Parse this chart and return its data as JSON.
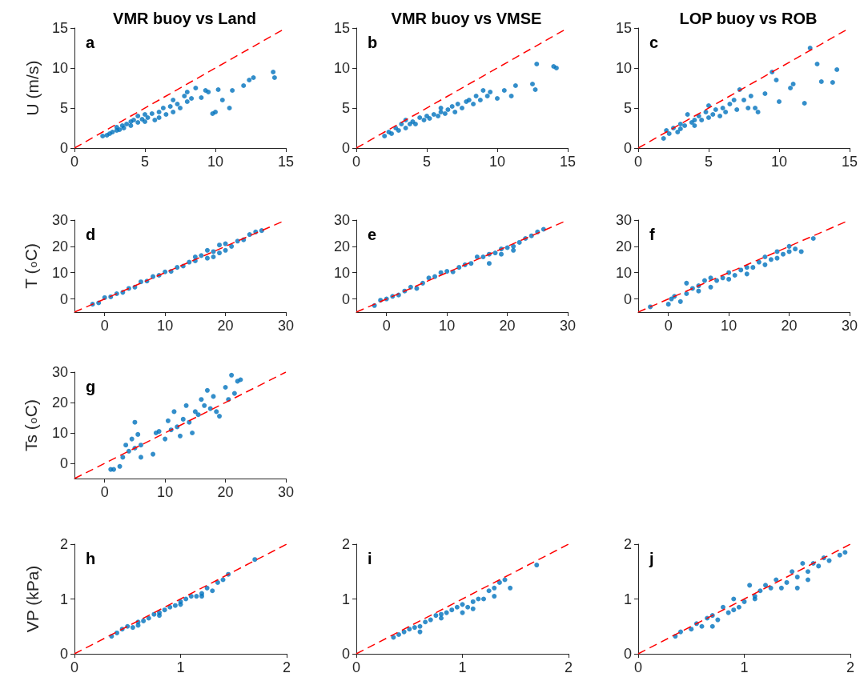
{
  "chart_data": [
    {
      "type": "scatter",
      "title": "VMR buoy vs Land",
      "ylabel": "U (m/s)",
      "annotations": [
        "a"
      ],
      "xlim": [
        0,
        15
      ],
      "xticks": [
        0,
        5,
        10,
        15
      ],
      "ylim": [
        0,
        15
      ],
      "yticks": [
        0,
        5,
        10,
        15
      ],
      "series": [
        {
          "color": "#0072bd",
          "marker": "circle",
          "x": [
            2,
            2.3,
            2.5,
            2.7,
            3,
            3,
            3.2,
            3.4,
            3.5,
            3.7,
            4,
            4,
            4.2,
            4.5,
            4.5,
            4.8,
            5,
            5,
            5.2,
            5.5,
            5.7,
            6,
            6,
            6.3,
            6.5,
            6.8,
            7,
            7,
            7.3,
            7.5,
            7.8,
            8,
            8,
            8.3,
            8.6,
            9,
            9.3,
            9.5,
            9.8,
            10,
            10.2,
            10.5,
            11,
            11.2,
            12,
            12.4,
            12.7,
            14.1,
            14.2
          ],
          "values": [
            1.5,
            1.6,
            1.8,
            2,
            2.2,
            2.6,
            2.3,
            2.8,
            2.5,
            3,
            2.8,
            3.3,
            3.5,
            3.2,
            4,
            3.6,
            3.3,
            4.2,
            3.8,
            4.3,
            3.5,
            4.5,
            3.8,
            5,
            4.2,
            5.2,
            4.5,
            6,
            5.5,
            5,
            6.5,
            5.8,
            7,
            6.2,
            7.5,
            6.3,
            7.2,
            7,
            4.3,
            4.5,
            7.3,
            6,
            5,
            7.2,
            7.8,
            8.5,
            8.8,
            9.5,
            8.8
          ]
        },
        {
          "type": "line",
          "color": "#ff0000",
          "marker": "none",
          "line_style": "dashed",
          "x": [
            0,
            15
          ],
          "values": [
            0,
            15
          ]
        }
      ]
    },
    {
      "type": "scatter",
      "title": "VMR buoy vs VMSE",
      "annotations": [
        "b"
      ],
      "xlim": [
        0,
        15
      ],
      "xticks": [
        0,
        5,
        10,
        15
      ],
      "ylim": [
        0,
        15
      ],
      "yticks": [
        0,
        5,
        10,
        15
      ],
      "series": [
        {
          "color": "#0072bd",
          "marker": "circle",
          "x": [
            2,
            2.3,
            2.5,
            2.8,
            3,
            3.2,
            3.5,
            3.5,
            3.8,
            4,
            4.2,
            4.5,
            4.8,
            5,
            5.2,
            5.5,
            5.8,
            6,
            6,
            6.3,
            6.5,
            6.8,
            7,
            7.2,
            7.5,
            7.8,
            8,
            8.3,
            8.5,
            8.8,
            9,
            9.3,
            9.5,
            10,
            10.5,
            11,
            11.3,
            12.5,
            12.7,
            12.8,
            14,
            14.2
          ],
          "values": [
            1.5,
            2,
            1.8,
            2.5,
            2.2,
            3,
            2.5,
            3.5,
            3,
            3.3,
            3,
            3.8,
            3.5,
            4,
            3.7,
            4.2,
            4,
            4.5,
            5,
            4.3,
            4.8,
            5.2,
            4.5,
            5.5,
            5,
            5.8,
            6,
            5.5,
            6.5,
            6,
            7.2,
            6.5,
            7,
            6.2,
            7.2,
            6.5,
            7.8,
            8,
            7.3,
            10.5,
            10.2,
            10
          ]
        },
        {
          "type": "line",
          "color": "#ff0000",
          "marker": "none",
          "line_style": "dashed",
          "x": [
            0,
            15
          ],
          "values": [
            0,
            15
          ]
        }
      ]
    },
    {
      "type": "scatter",
      "title": "LOP buoy vs ROB",
      "annotations": [
        "c"
      ],
      "xlim": [
        0,
        15
      ],
      "xticks": [
        0,
        5,
        10,
        15
      ],
      "ylim": [
        0,
        15
      ],
      "yticks": [
        0,
        5,
        10,
        15
      ],
      "series": [
        {
          "color": "#0072bd",
          "marker": "circle",
          "x": [
            1.8,
            2,
            2.2,
            2.5,
            2.8,
            3,
            3,
            3.3,
            3.5,
            3.8,
            4,
            4,
            4.3,
            4.5,
            4.8,
            5,
            5,
            5.3,
            5.5,
            5.8,
            6,
            6.2,
            6.5,
            6.8,
            7,
            7.2,
            7.5,
            7.8,
            8,
            8.3,
            8.5,
            9,
            9.5,
            9.8,
            10,
            10.8,
            11,
            11.8,
            12.2,
            12.7,
            13,
            13.8,
            14.1
          ],
          "values": [
            1.2,
            2.2,
            1.8,
            2.5,
            2,
            3,
            2.4,
            2.8,
            4.2,
            3.2,
            3.5,
            2.8,
            4,
            3.5,
            4.5,
            3.8,
            5.3,
            4.2,
            4.8,
            4,
            5,
            4.5,
            5.5,
            6,
            4.8,
            7.3,
            6,
            5,
            6.5,
            5,
            4.5,
            6.8,
            9.5,
            8.5,
            5.8,
            7.5,
            8,
            5.6,
            12.5,
            10.5,
            8.3,
            8.2,
            9.8
          ]
        },
        {
          "type": "line",
          "color": "#ff0000",
          "marker": "none",
          "line_style": "dashed",
          "x": [
            0,
            15
          ],
          "values": [
            0,
            15
          ]
        }
      ]
    },
    {
      "type": "scatter",
      "ylabel": "T ($^{o}$C)",
      "annotations": [
        "d"
      ],
      "xlim": [
        -5,
        30
      ],
      "xticks": [
        0,
        10,
        20,
        30
      ],
      "ylim": [
        -5,
        30
      ],
      "yticks": [
        0,
        10,
        20,
        30
      ],
      "series": [
        {
          "color": "#0072bd",
          "marker": "circle",
          "x": [
            -2,
            -1,
            0,
            1,
            2,
            3,
            4,
            5,
            6,
            7,
            8,
            9,
            10,
            11,
            12,
            13,
            14,
            15,
            16,
            17,
            18,
            19,
            20,
            21,
            22,
            23,
            24,
            25,
            26,
            17,
            18,
            19,
            20,
            15
          ],
          "values": [
            -2,
            -1.5,
            0.5,
            0.8,
            2,
            2.5,
            4,
            4.5,
            6.5,
            6.8,
            8.5,
            9,
            10.3,
            10.5,
            12,
            12.5,
            14,
            16,
            16.5,
            15.5,
            18,
            17.5,
            21,
            20,
            22,
            22.5,
            24.5,
            25.5,
            26,
            18.5,
            16,
            20.5,
            18.5,
            14.5
          ]
        },
        {
          "type": "line",
          "color": "#ff0000",
          "marker": "none",
          "line_style": "dashed",
          "x": [
            -5,
            30
          ],
          "values": [
            -5,
            30
          ]
        }
      ]
    },
    {
      "type": "scatter",
      "annotations": [
        "e"
      ],
      "xlim": [
        -5,
        30
      ],
      "xticks": [
        0,
        10,
        20,
        30
      ],
      "ylim": [
        -5,
        30
      ],
      "yticks": [
        0,
        10,
        20,
        30
      ],
      "series": [
        {
          "color": "#0072bd",
          "marker": "circle",
          "x": [
            -2,
            -1,
            0,
            1,
            2,
            3,
            4,
            5,
            6,
            7,
            8,
            9,
            10,
            11,
            12,
            13,
            14,
            15,
            16,
            17,
            18,
            19,
            20,
            21,
            22,
            23,
            24,
            25,
            26,
            17,
            19,
            21
          ],
          "values": [
            -2.5,
            -0.5,
            0,
            1,
            1.5,
            3,
            4.5,
            4,
            6,
            8,
            8.5,
            10,
            10.5,
            10.3,
            12,
            13,
            13.5,
            16,
            16,
            17,
            17.5,
            19,
            19.5,
            20,
            21.5,
            23,
            24,
            25.5,
            26.5,
            13.5,
            17,
            18.5
          ]
        },
        {
          "type": "line",
          "color": "#ff0000",
          "marker": "none",
          "line_style": "dashed",
          "x": [
            -5,
            30
          ],
          "values": [
            -5,
            30
          ]
        }
      ]
    },
    {
      "type": "scatter",
      "annotations": [
        "f"
      ],
      "xlim": [
        -5,
        30
      ],
      "xticks": [
        0,
        10,
        20,
        30
      ],
      "ylim": [
        -5,
        30
      ],
      "yticks": [
        0,
        10,
        20,
        30
      ],
      "series": [
        {
          "color": "#0072bd",
          "marker": "circle",
          "x": [
            -3,
            0,
            0.5,
            1,
            2,
            3,
            3,
            4,
            5,
            5,
            6,
            7,
            7,
            8,
            9,
            10,
            10,
            11,
            12,
            13,
            13,
            14,
            15,
            16,
            16,
            17,
            18,
            18,
            19,
            20,
            20,
            21,
            22,
            24
          ],
          "values": [
            -3,
            -2,
            0,
            1,
            -1,
            6,
            2,
            4,
            3,
            5,
            7,
            4.5,
            8,
            7,
            8,
            7.5,
            10,
            9,
            11,
            12,
            9.5,
            12,
            14,
            13,
            16,
            15,
            18,
            15.5,
            17,
            20,
            18,
            19,
            18,
            23
          ]
        },
        {
          "type": "line",
          "color": "#ff0000",
          "marker": "none",
          "line_style": "dashed",
          "x": [
            -5,
            30
          ],
          "values": [
            -5,
            30
          ]
        }
      ]
    },
    {
      "type": "scatter",
      "ylabel": "Ts ($^{o}$C)",
      "annotations": [
        "g"
      ],
      "xlim": [
        -5,
        30
      ],
      "xticks": [
        0,
        10,
        20,
        30
      ],
      "ylim": [
        -5,
        30
      ],
      "yticks": [
        0,
        10,
        20,
        30
      ],
      "series": [
        {
          "color": "#0072bd",
          "marker": "circle",
          "x": [
            1,
            1.5,
            2.5,
            3,
            3.5,
            4,
            4.5,
            5,
            5,
            5.5,
            6,
            6,
            8,
            8.5,
            9,
            10,
            10.5,
            11,
            11.5,
            12,
            12.5,
            13,
            13.5,
            14,
            14.5,
            15,
            15.5,
            16,
            16.5,
            17,
            17.5,
            18,
            18.5,
            19,
            20,
            20.5,
            21,
            21.5,
            22,
            22.5
          ],
          "values": [
            -2,
            -2,
            -1,
            2,
            6,
            4,
            8,
            13.5,
            5,
            9.5,
            6,
            2,
            3,
            10,
            10.5,
            8,
            14,
            11,
            17,
            12,
            9,
            14.5,
            19,
            13.5,
            10,
            17,
            16,
            21,
            19,
            24,
            18,
            22,
            17,
            15.5,
            25,
            21,
            29,
            23,
            27,
            27.5
          ]
        },
        {
          "type": "line",
          "color": "#ff0000",
          "marker": "none",
          "line_style": "dashed",
          "x": [
            -5,
            30
          ],
          "values": [
            -5,
            30
          ]
        }
      ]
    },
    {
      "type": "scatter",
      "ylabel": "VP (kPa)",
      "annotations": [
        "h"
      ],
      "xlim": [
        0,
        2
      ],
      "xticks": [
        0,
        1,
        2
      ],
      "ylim": [
        0,
        2
      ],
      "yticks": [
        0,
        1,
        2
      ],
      "series": [
        {
          "color": "#0072bd",
          "marker": "circle",
          "x": [
            0.35,
            0.4,
            0.45,
            0.5,
            0.55,
            0.6,
            0.65,
            0.7,
            0.75,
            0.8,
            0.85,
            0.9,
            0.95,
            1,
            1.05,
            1.1,
            1.15,
            1.2,
            1.25,
            1.3,
            1.35,
            1.4,
            1.45,
            1.7,
            0.6,
            0.8,
            1.0,
            1.2
          ],
          "values": [
            0.32,
            0.38,
            0.45,
            0.5,
            0.48,
            0.58,
            0.6,
            0.65,
            0.72,
            0.75,
            0.8,
            0.85,
            0.88,
            0.95,
            1.0,
            1.05,
            1.05,
            1.1,
            1.2,
            1.15,
            1.3,
            1.35,
            1.45,
            1.72,
            0.52,
            0.7,
            0.9,
            1.05
          ]
        },
        {
          "type": "line",
          "color": "#ff0000",
          "marker": "none",
          "line_style": "dashed",
          "x": [
            0,
            2
          ],
          "values": [
            0,
            2
          ]
        }
      ]
    },
    {
      "type": "scatter",
      "annotations": [
        "i"
      ],
      "xlim": [
        0,
        2
      ],
      "xticks": [
        0,
        1,
        2
      ],
      "ylim": [
        0,
        2
      ],
      "yticks": [
        0,
        1,
        2
      ],
      "series": [
        {
          "color": "#0072bd",
          "marker": "circle",
          "x": [
            0.35,
            0.4,
            0.45,
            0.5,
            0.55,
            0.6,
            0.65,
            0.7,
            0.75,
            0.8,
            0.85,
            0.9,
            0.95,
            1,
            1.05,
            1.1,
            1.15,
            1.2,
            1.25,
            1.3,
            1.35,
            1.4,
            1.45,
            1.7,
            0.6,
            0.8,
            1.0,
            1.1,
            1.3
          ],
          "values": [
            0.3,
            0.35,
            0.4,
            0.45,
            0.48,
            0.5,
            0.58,
            0.62,
            0.7,
            0.72,
            0.75,
            0.8,
            0.85,
            0.9,
            0.85,
            0.95,
            1.0,
            1.0,
            1.15,
            1.05,
            1.3,
            1.35,
            1.2,
            1.62,
            0.4,
            0.65,
            0.75,
            0.82,
            1.2
          ]
        },
        {
          "type": "line",
          "color": "#ff0000",
          "marker": "none",
          "line_style": "dashed",
          "x": [
            0,
            2
          ],
          "values": [
            0,
            2
          ]
        }
      ]
    },
    {
      "type": "scatter",
      "annotations": [
        "j"
      ],
      "xlim": [
        0,
        2
      ],
      "xticks": [
        0,
        1,
        2
      ],
      "ylim": [
        0,
        2
      ],
      "yticks": [
        0,
        1,
        2
      ],
      "series": [
        {
          "color": "#0072bd",
          "marker": "circle",
          "x": [
            0.35,
            0.4,
            0.5,
            0.55,
            0.6,
            0.65,
            0.7,
            0.75,
            0.8,
            0.85,
            0.9,
            0.95,
            1,
            1.05,
            1.1,
            1.15,
            1.2,
            1.25,
            1.3,
            1.35,
            1.4,
            1.45,
            1.5,
            1.55,
            1.6,
            1.65,
            1.7,
            1.75,
            1.8,
            1.9,
            1.95,
            0.7,
            0.9,
            1.1,
            1.5,
            1.6
          ],
          "values": [
            0.32,
            0.4,
            0.45,
            0.55,
            0.5,
            0.65,
            0.7,
            0.62,
            0.85,
            0.75,
            1.0,
            0.85,
            0.95,
            1.25,
            1.05,
            1.15,
            1.25,
            1.2,
            1.35,
            1.2,
            1.3,
            1.5,
            1.4,
            1.65,
            1.5,
            1.65,
            1.6,
            1.75,
            1.7,
            1.8,
            1.85,
            0.5,
            0.8,
            1.0,
            1.2,
            1.35
          ]
        },
        {
          "type": "line",
          "color": "#ff0000",
          "marker": "none",
          "line_style": "dashed",
          "x": [
            0,
            2
          ],
          "values": [
            0,
            2
          ]
        }
      ]
    }
  ]
}
